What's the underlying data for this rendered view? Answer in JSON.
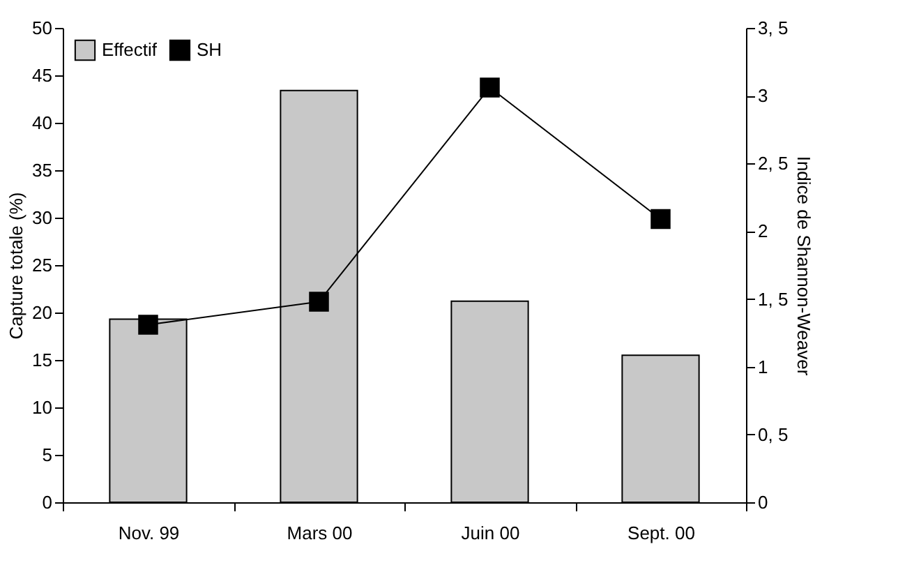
{
  "chart_data": {
    "type": "bar",
    "categories": [
      "Nov. 99",
      "Mars 00",
      "Juin 00",
      "Sept. 00"
    ],
    "ylabel": "Capture totale (%)",
    "y2label": "Indice de Shannon-Weaver",
    "series": [
      {
        "name": "Effectif",
        "color": "#c8c8c8",
        "values": [
          19.3,
          43.4,
          21.2,
          15.5
        ]
      },
      {
        "name": "SH",
        "type": "line",
        "axis": "y2",
        "color": "#000000",
        "values": [
          1.31,
          1.48,
          3.06,
          2.09
        ]
      }
    ],
    "ylim": [
      0,
      50
    ],
    "yticks": [
      0,
      5,
      10,
      15,
      20,
      25,
      30,
      35,
      40,
      45,
      50
    ],
    "y2lim": [
      0,
      3.5
    ],
    "y2ticks": [
      0,
      {
        "value": 0.5,
        "label": "0, 5"
      },
      1,
      {
        "value": 1.5,
        "label": "1, 5"
      },
      2,
      {
        "value": 2.5,
        "label": "2, 5"
      },
      3,
      {
        "value": 3.5,
        "label": "3, 5"
      }
    ],
    "legend": "top left",
    "marker": "square",
    "line_style": "solid",
    "grid": false
  }
}
